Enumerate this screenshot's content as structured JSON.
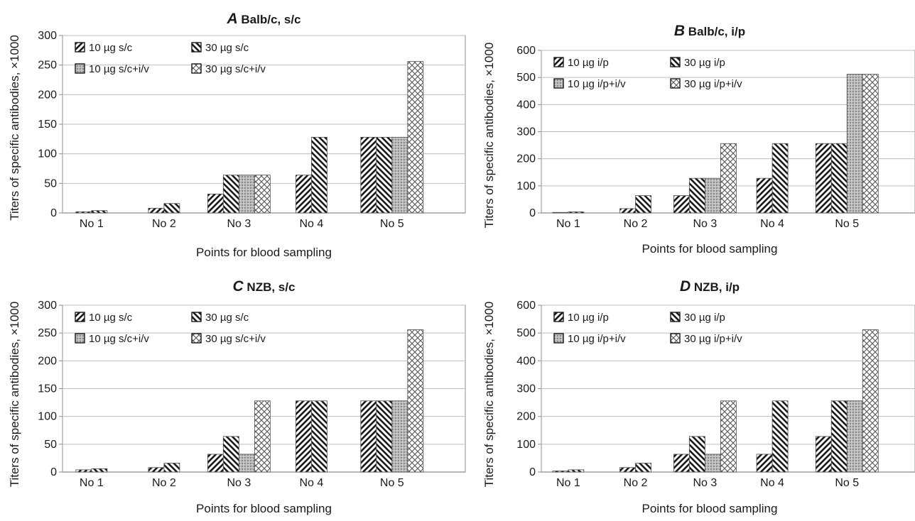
{
  "figure": {
    "ylabel": "Titers of specific antibodies, ×1000",
    "xlabel": "Points for blood sampling"
  },
  "chart_data": [
    {
      "type": "bar",
      "letter": "A",
      "title": "Balb/c, s/c",
      "xlabel": "Points for blood sampling",
      "ylabel": "Titers of specific antibodies, ×1000",
      "ylim": [
        0,
        300
      ],
      "yticks": [
        0,
        50,
        100,
        150,
        200,
        250,
        300
      ],
      "grid": true,
      "legend_position": "top-left",
      "categories": [
        "No 1",
        "No 2",
        "No 3",
        "No 4",
        "No 5"
      ],
      "series": [
        {
          "name": "10 µg s/c",
          "pattern": "diag-fwd",
          "values": [
            2,
            8,
            32,
            64,
            128
          ]
        },
        {
          "name": "30 µg s/c",
          "pattern": "diag-back",
          "values": [
            4,
            16,
            64,
            128,
            128
          ]
        },
        {
          "name": "10 µg s/c+i/v",
          "pattern": "dots",
          "values": [
            null,
            null,
            64,
            null,
            128
          ]
        },
        {
          "name": "30 µg s/c+i/v",
          "pattern": "cross",
          "values": [
            null,
            null,
            64,
            null,
            256
          ]
        }
      ]
    },
    {
      "type": "bar",
      "letter": "B",
      "title": "Balb/c, i/p",
      "xlabel": "Points for blood sampling",
      "ylabel": "Titers of specific antibodies, ×1000",
      "ylim": [
        0,
        600
      ],
      "yticks": [
        0,
        100,
        200,
        300,
        400,
        500,
        600
      ],
      "grid": true,
      "legend_position": "top-left",
      "categories": [
        "No 1",
        "No 2",
        "No 3",
        "No 4",
        "No 5"
      ],
      "series": [
        {
          "name": "10 µg i/p",
          "pattern": "diag-fwd",
          "values": [
            2,
            16,
            64,
            128,
            256
          ]
        },
        {
          "name": "30 µg i/p",
          "pattern": "diag-back",
          "values": [
            4,
            64,
            128,
            256,
            256
          ]
        },
        {
          "name": "10 µg i/p+i/v",
          "pattern": "dots",
          "values": [
            null,
            null,
            128,
            null,
            512
          ]
        },
        {
          "name": "30 µg i/p+i/v",
          "pattern": "cross",
          "values": [
            null,
            null,
            256,
            null,
            512
          ]
        }
      ]
    },
    {
      "type": "bar",
      "letter": "C",
      "title": "NZB, s/c",
      "xlabel": "Points for blood sampling",
      "ylabel": "Titers of specific antibodies, ×1000",
      "ylim": [
        0,
        300
      ],
      "yticks": [
        0,
        50,
        100,
        150,
        200,
        250,
        300
      ],
      "grid": true,
      "legend_position": "top-left",
      "categories": [
        "No 1",
        "No 2",
        "No 3",
        "No 4",
        "No 5"
      ],
      "series": [
        {
          "name": "10 µg s/c",
          "pattern": "diag-fwd",
          "values": [
            4,
            8,
            32,
            128,
            128
          ]
        },
        {
          "name": "30 µg s/c",
          "pattern": "diag-back",
          "values": [
            6,
            16,
            64,
            128,
            128
          ]
        },
        {
          "name": "10 µg s/c+i/v",
          "pattern": "dots",
          "values": [
            null,
            null,
            32,
            null,
            128
          ]
        },
        {
          "name": "30 µg s/c+i/v",
          "pattern": "cross",
          "values": [
            null,
            null,
            128,
            null,
            256
          ]
        }
      ]
    },
    {
      "type": "bar",
      "letter": "D",
      "title": "NZB, i/p",
      "xlabel": "Points for blood sampling",
      "ylabel": "Titers of specific antibodies, ×1000",
      "ylim": [
        0,
        600
      ],
      "yticks": [
        0,
        100,
        200,
        300,
        400,
        500,
        600
      ],
      "grid": true,
      "legend_position": "top-left",
      "categories": [
        "No 1",
        "No 2",
        "No 3",
        "No 4",
        "No 5"
      ],
      "series": [
        {
          "name": "10 µg i/p",
          "pattern": "diag-fwd",
          "values": [
            4,
            16,
            64,
            64,
            128
          ]
        },
        {
          "name": "30 µg i/p",
          "pattern": "diag-back",
          "values": [
            8,
            32,
            128,
            256,
            256
          ]
        },
        {
          "name": "10 µg i/p+i/v",
          "pattern": "dots",
          "values": [
            null,
            null,
            64,
            null,
            256
          ]
        },
        {
          "name": "30 µg i/p+i/v",
          "pattern": "cross",
          "values": [
            null,
            null,
            256,
            null,
            512
          ]
        }
      ]
    }
  ]
}
